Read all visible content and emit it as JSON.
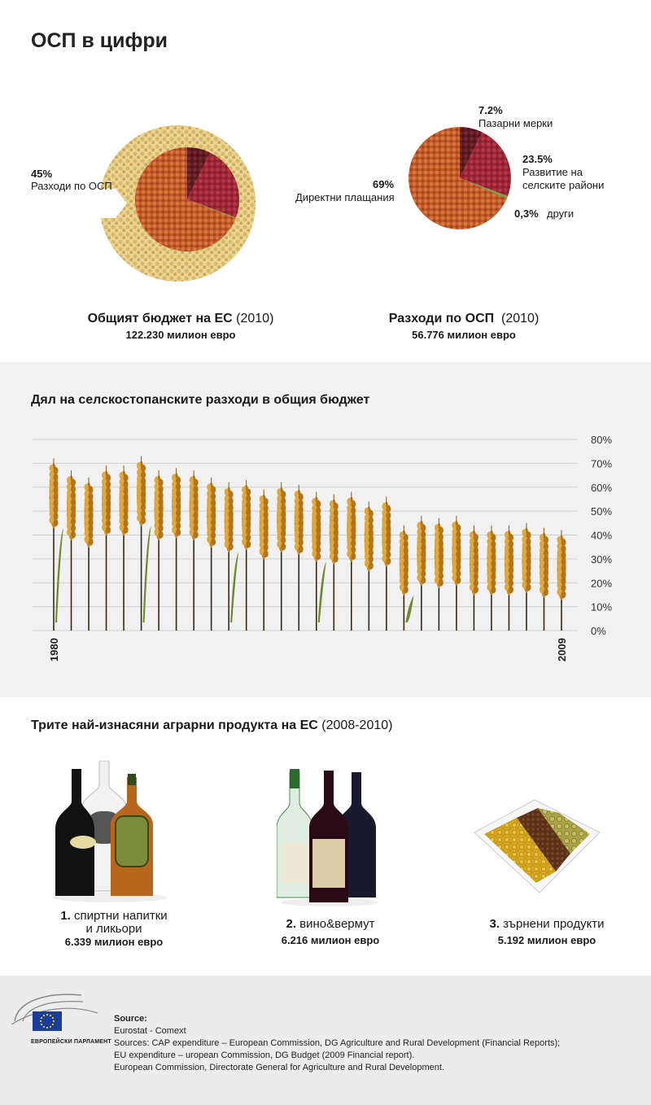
{
  "title": "ОСП в цифри",
  "colors": {
    "grain_yellow": "#e3c77d",
    "grain_orange": "#c8622f",
    "grain_red": "#a22a3a",
    "grain_dark": "#6b1e24",
    "grain_green": "#7fa34a",
    "wheat": "#c98a27",
    "panel_bg": "#f1f1f1"
  },
  "pie1": {
    "pct": "45%",
    "label": "Разходи по ОСП",
    "caption_bold": "Общият бюджет на ЕС",
    "caption_year": "(2010)",
    "value": "122.230 милион евро"
  },
  "pie2": {
    "slices": [
      {
        "pct": "69%",
        "label": "Директни плащания"
      },
      {
        "pct": "7.2%",
        "label": "Пазарни мерки"
      },
      {
        "pct": "23.5%",
        "label": "Развитие на",
        "label2": "селските райони"
      },
      {
        "pct": "0,3%",
        "label": "други"
      }
    ],
    "caption_bold": "Разходи по ОСП",
    "caption_year": "(2010)",
    "value": "56.776 милион евро"
  },
  "chart_data": [
    {
      "type": "pie",
      "series": [
        {
          "values": [
            45,
            55
          ]
        }
      ],
      "categories": [
        "Разходи по ОСП",
        ""
      ]
    },
    {
      "type": "pie",
      "categories": [
        "Директни плащания",
        "Пазарни мерки",
        "Развитие на селските райони",
        "други"
      ],
      "values": [
        69,
        7.2,
        23.5,
        0.3
      ]
    },
    {
      "type": "bar",
      "title": "Дял на селскостопанските разходи в общия бюджет",
      "x": [
        1980,
        1981,
        1982,
        1983,
        1984,
        1985,
        1986,
        1987,
        1988,
        1989,
        1990,
        1991,
        1992,
        1993,
        1994,
        1995,
        1996,
        1997,
        1998,
        1999,
        2000,
        2001,
        2002,
        2003,
        2004,
        2005,
        2006,
        2007,
        2008,
        2009
      ],
      "x_tick_labels": [
        "1980",
        "2009"
      ],
      "values": [
        70,
        65,
        62,
        67,
        67,
        71,
        65,
        66,
        65,
        62,
        60,
        61,
        57,
        60,
        59,
        56,
        55,
        56,
        52,
        54,
        42,
        46,
        45,
        46,
        42,
        42,
        42,
        43,
        41,
        40
      ],
      "ylim": [
        0,
        80
      ],
      "y_ticks": [
        "80%",
        "70%",
        "60%",
        "50%",
        "40%",
        "30%",
        "20%",
        "10%",
        "0%"
      ],
      "grid": true
    }
  ],
  "section3": {
    "title_bold": "Трите най-изнасяни аграрни продукта на ЕС",
    "title_year": "(2008-2010)",
    "products": [
      {
        "num": "1.",
        "label": "спиртни напитки",
        "label2": "и ликьори",
        "value": "6.339 милион евро"
      },
      {
        "num": "2.",
        "label": "вино&вермут",
        "value": "6.216 милион евро"
      },
      {
        "num": "3.",
        "label": "зърнени продукти",
        "value": "5.192 милион евро"
      }
    ]
  },
  "footer": {
    "logo_text": "ЕВРОПЕЙСКИ ПАРЛАМЕНТ",
    "source_label": "Source:",
    "lines": [
      "Eurostat - Comext",
      "Sources: CAP expenditure – European Commission, DG Agriculture and Rural Development (Financial Reports);",
      "EU expenditure – uropean Commission, DG Budget (2009 Financial report).",
      "European Commission, Directorate General for Agriculture and Rural Development."
    ]
  }
}
